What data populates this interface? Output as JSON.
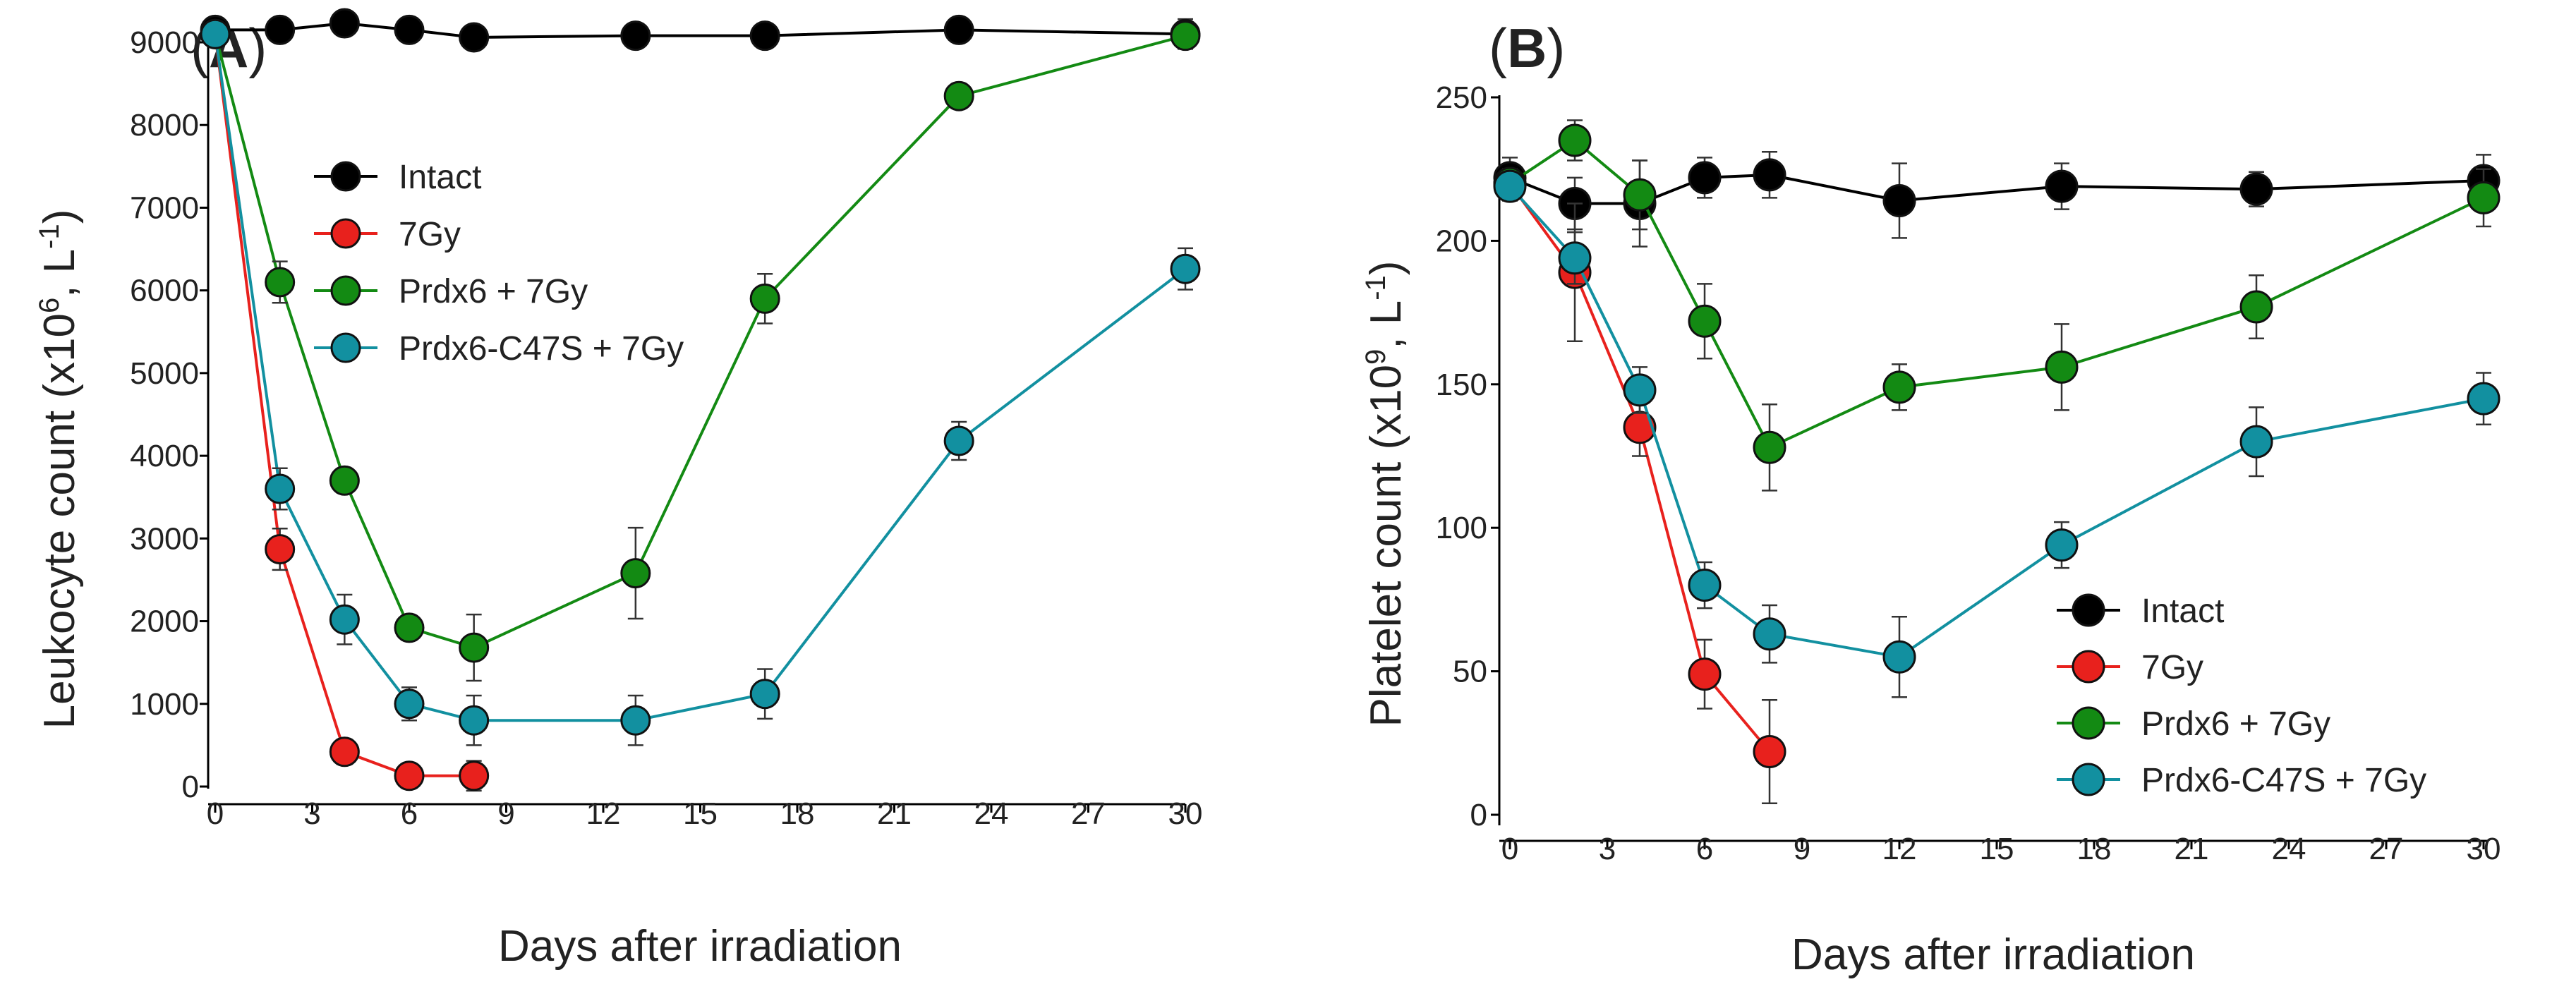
{
  "chart_data": [
    {
      "type": "line",
      "panel_label": "A",
      "xlabel": "Days after irradiation",
      "ylabel_main": "Leukocyte count (x10",
      "ylabel_sup1": "6",
      "ylabel_mid": ", L",
      "ylabel_sup2": "-1",
      "ylabel_end": ")",
      "xlim": [
        0,
        30
      ],
      "ylim": [
        0,
        9000
      ],
      "xticks": [
        0,
        3,
        6,
        9,
        12,
        15,
        18,
        21,
        24,
        27,
        30
      ],
      "yticks": [
        0,
        1000,
        2000,
        3000,
        4000,
        5000,
        6000,
        7000,
        8000,
        9000
      ],
      "legend_position": "top-left",
      "series": [
        {
          "name": "Intact",
          "color": "#000000",
          "x": [
            0,
            2,
            4,
            6,
            8,
            13,
            17,
            23,
            30
          ],
          "y": [
            9150,
            9150,
            9230,
            9150,
            9060,
            9080,
            9080,
            9150,
            9100
          ],
          "err": [
            80,
            80,
            80,
            80,
            80,
            80,
            80,
            80,
            180
          ]
        },
        {
          "name": "7Gy",
          "color": "#e8211d",
          "x": [
            0,
            2,
            4,
            6,
            8
          ],
          "y": [
            9100,
            2870,
            420,
            130,
            130
          ],
          "err": [
            120,
            250,
            150,
            80,
            180
          ]
        },
        {
          "name": "Prdx6 + 7Gy",
          "color": "#138a13",
          "x": [
            0,
            2,
            4,
            6,
            8,
            13,
            17,
            23,
            30
          ],
          "y": [
            9100,
            6100,
            3700,
            1920,
            1680,
            2580,
            5900,
            8350,
            9080
          ],
          "err": [
            120,
            250,
            100,
            150,
            400,
            550,
            300,
            150,
            150
          ]
        },
        {
          "name": "Prdx6-C47S + 7Gy",
          "color": "#1290a0",
          "x": [
            0,
            2,
            4,
            6,
            8,
            13,
            17,
            23,
            30
          ],
          "y": [
            9100,
            3600,
            2020,
            1000,
            800,
            800,
            1120,
            4180,
            6260
          ],
          "err": [
            120,
            250,
            300,
            200,
            300,
            300,
            300,
            230,
            250
          ]
        }
      ]
    },
    {
      "type": "line",
      "panel_label": "B",
      "xlabel": "Days after irradiation",
      "ylabel_main": "Platelet count (x10",
      "ylabel_sup1": "9",
      "ylabel_mid": ", L",
      "ylabel_sup2": "-1",
      "ylabel_end": ")",
      "xlim": [
        0,
        30
      ],
      "ylim": [
        0,
        250
      ],
      "xticks": [
        0,
        3,
        6,
        9,
        12,
        15,
        18,
        21,
        24,
        27,
        30
      ],
      "yticks": [
        0,
        50,
        100,
        150,
        200,
        250
      ],
      "legend_position": "bottom-right",
      "series": [
        {
          "name": "Intact",
          "color": "#000000",
          "x": [
            0,
            2,
            4,
            6,
            8,
            12,
            17,
            23,
            30
          ],
          "y": [
            222,
            213,
            213,
            222,
            223,
            214,
            219,
            218,
            221
          ],
          "err": [
            7,
            9,
            15,
            7,
            8,
            13,
            8,
            6,
            9
          ]
        },
        {
          "name": "7Gy",
          "color": "#e8211d",
          "x": [
            0,
            2,
            4,
            6,
            8
          ],
          "y": [
            220,
            189,
            135,
            49,
            22
          ],
          "err": [
            5,
            24,
            10,
            12,
            18
          ]
        },
        {
          "name": "Prdx6 + 7Gy",
          "color": "#138a13",
          "x": [
            0,
            2,
            4,
            6,
            8,
            12,
            17,
            23,
            30
          ],
          "y": [
            220,
            235,
            216,
            172,
            128,
            149,
            156,
            177,
            215
          ],
          "err": [
            5,
            7,
            12,
            13,
            15,
            8,
            15,
            11,
            10
          ]
        },
        {
          "name": "Prdx6-C47S + 7Gy",
          "color": "#1290a0",
          "x": [
            0,
            2,
            4,
            6,
            8,
            12,
            17,
            23,
            30
          ],
          "y": [
            219,
            194,
            148,
            80,
            63,
            55,
            94,
            130,
            145
          ],
          "err": [
            5,
            9,
            8,
            8,
            10,
            14,
            8,
            12,
            9
          ]
        }
      ]
    }
  ]
}
